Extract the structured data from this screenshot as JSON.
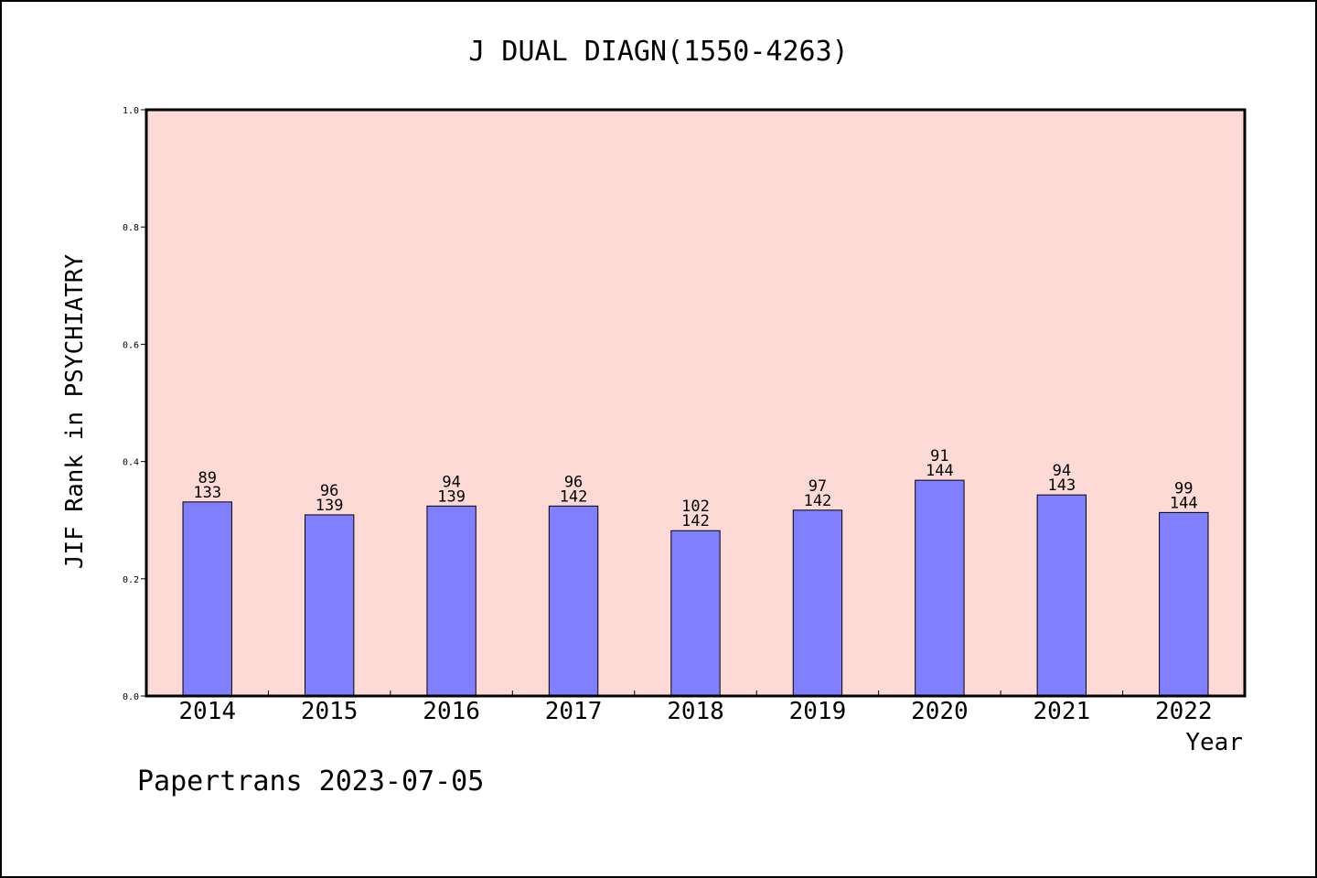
{
  "chart_data": {
    "type": "bar",
    "title": "J DUAL DIAGN(1550-4263)",
    "xlabel": "Year",
    "ylabel": "JIF Rank in PSYCHIATRY",
    "footer": "Papertrans 2023-07-05",
    "ylim": [
      0,
      1.0
    ],
    "yticks": [
      "0.0",
      "0.2",
      "0.4",
      "0.6",
      "0.8",
      "1.0"
    ],
    "categories": [
      "2014",
      "2015",
      "2016",
      "2017",
      "2018",
      "2019",
      "2020",
      "2021",
      "2022"
    ],
    "values": [
      0.331,
      0.309,
      0.324,
      0.324,
      0.282,
      0.317,
      0.368,
      0.343,
      0.313
    ],
    "ranks": [
      "89",
      "96",
      "94",
      "96",
      "102",
      "97",
      "91",
      "94",
      "99"
    ],
    "totals": [
      "133",
      "139",
      "139",
      "142",
      "142",
      "142",
      "144",
      "143",
      "144"
    ],
    "grid": false,
    "legend": "none",
    "colors": {
      "plot_background": "#fddad6",
      "bar_fill": "#8080ff",
      "bar_stroke": "#000000"
    }
  }
}
